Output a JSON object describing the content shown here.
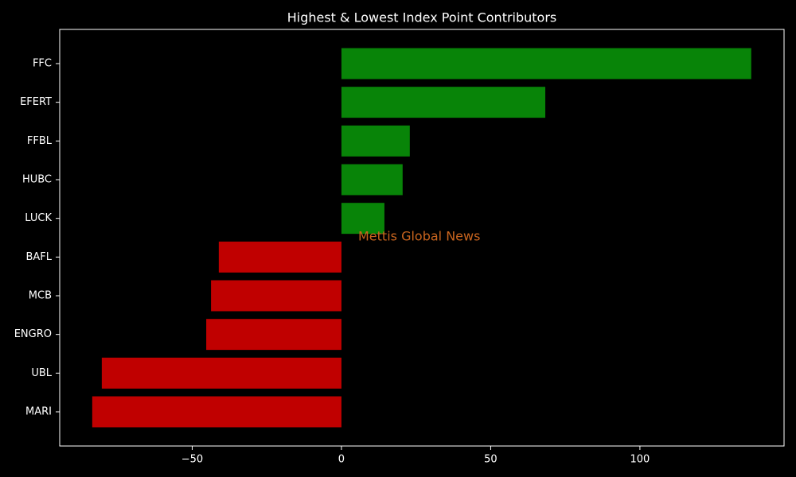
{
  "chart_data": {
    "type": "barh",
    "title": "Highest & Lowest Index Point Contributors",
    "annotation": "Mettis Global News",
    "categories": [
      "FFC",
      "EFERT",
      "FFBL",
      "HUBC",
      "LUCK",
      "BAFL",
      "MCB",
      "ENGRO",
      "UBL",
      "MARI"
    ],
    "values": [
      137.3,
      68.3,
      22.9,
      20.5,
      14.4,
      -41.1,
      -43.7,
      -45.3,
      -80.3,
      -83.5
    ],
    "colors": [
      "#088408",
      "#088408",
      "#088408",
      "#088408",
      "#088408",
      "#c00000",
      "#c00000",
      "#c00000",
      "#c00000",
      "#c00000"
    ],
    "xlim": [
      -94.4,
      148.3
    ],
    "xticks": [
      {
        "value": -50,
        "label": "−50"
      },
      0,
      50,
      100
    ],
    "grid": false
  }
}
